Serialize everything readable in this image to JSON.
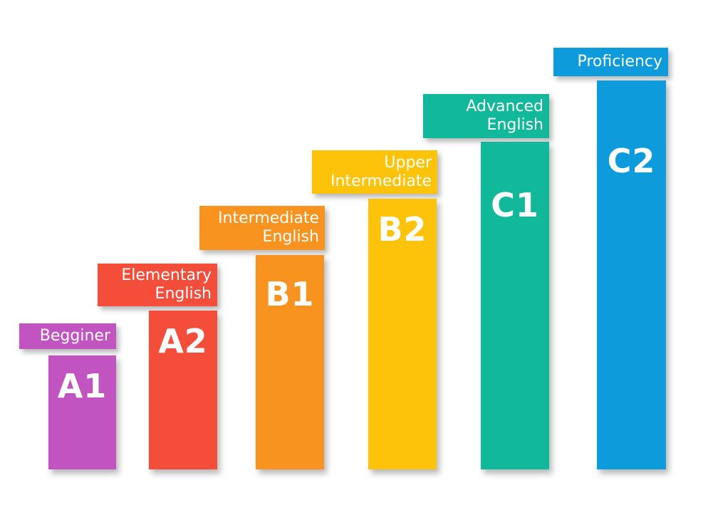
{
  "levels": [
    {
      "code": "A1",
      "label_lines": [
        "Begginer"
      ],
      "color": "#C154C1"
    },
    {
      "code": "A2",
      "label_lines": [
        "Elementary",
        "English"
      ],
      "color": "#F44E3B"
    },
    {
      "code": "B1",
      "label_lines": [
        "Intermediate",
        "English"
      ],
      "color": "#F7931E"
    },
    {
      "code": "B2",
      "label_lines": [
        "Upper",
        "Intermediate"
      ],
      "color": "#FDC30A"
    },
    {
      "code": "C1",
      "label_lines": [
        "Advanced",
        "English"
      ],
      "color": "#12B89A"
    },
    {
      "code": "C2",
      "label_lines": [
        "Proficiency"
      ],
      "color": "#0E9BDC"
    }
  ]
}
